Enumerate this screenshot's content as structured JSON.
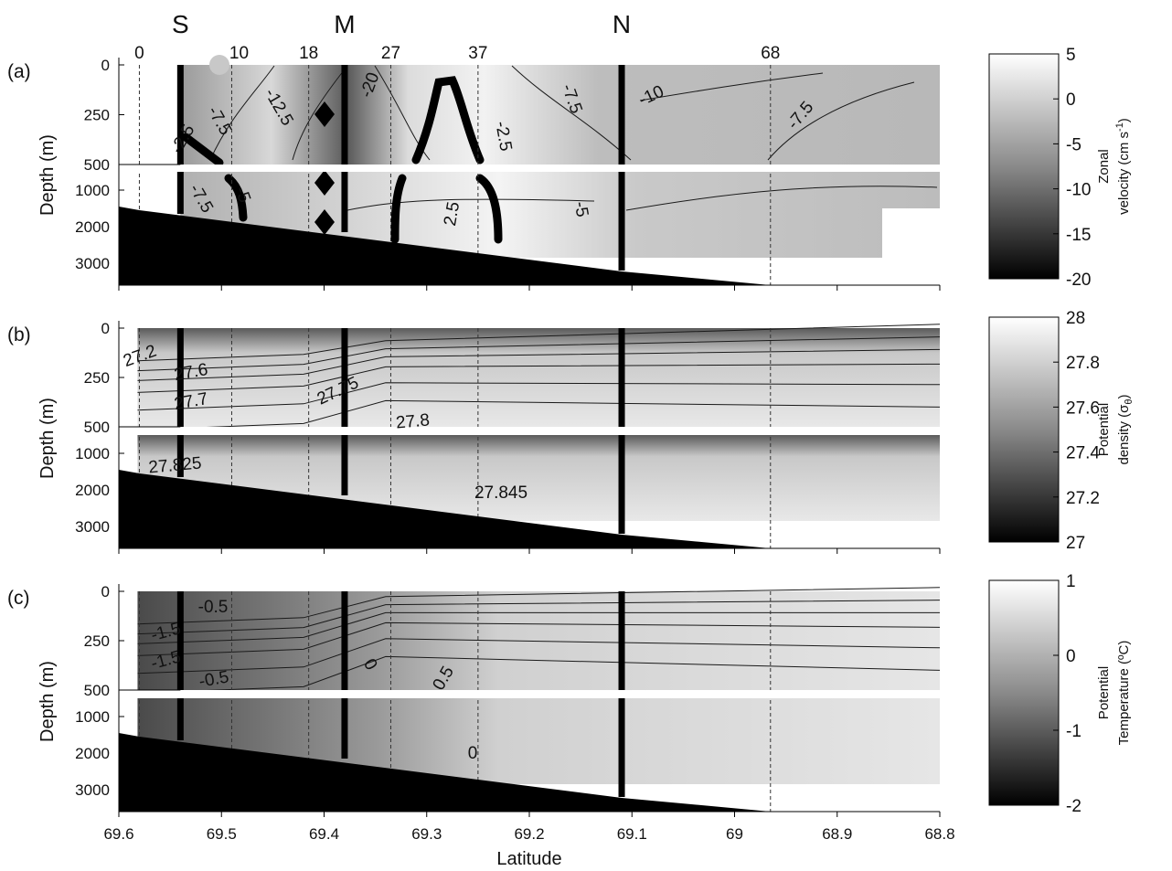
{
  "chart_data": {
    "type": "heatmap",
    "x_axis": {
      "label": "Latitude",
      "range": [
        69.6,
        68.8
      ],
      "ticks": [
        "69.6",
        "69.5",
        "69.4",
        "69.3",
        "69.2",
        "69.1",
        "69",
        "68.9",
        "68.8"
      ]
    },
    "y_axis": {
      "label": "Depth (m)",
      "upper_ticks": [
        "0",
        "250",
        "500"
      ],
      "lower_ticks": [
        "1000",
        "2000",
        "3000"
      ]
    },
    "moorings": [
      {
        "name": "S",
        "lat": 69.54
      },
      {
        "name": "M",
        "lat": 69.38
      },
      {
        "name": "N",
        "lat": 69.11
      }
    ],
    "stations": [
      {
        "label": "0",
        "lat": 69.58
      },
      {
        "label": "10",
        "lat": 69.49
      },
      {
        "label": "18",
        "lat": 69.415
      },
      {
        "label": "27",
        "lat": 69.335
      },
      {
        "label": "37",
        "lat": 69.25
      },
      {
        "label": "68",
        "lat": 68.965
      }
    ],
    "panels": [
      {
        "letter": "(a)",
        "colorbar": {
          "label_line1": "Zonal",
          "label_line2": "velocity (cm s",
          "label_sup": "-1",
          "label_end": ")",
          "ticks": [
            "5",
            "0",
            "-5",
            "-10",
            "-15",
            "-20"
          ],
          "range": [
            -20,
            5
          ]
        },
        "contour_labels": [
          "-2.5",
          "-7.5",
          "-12.5",
          "-20",
          "-7.5",
          "-10",
          "-7.5",
          "-2.5",
          "-7.5",
          "-5",
          "2.5",
          "-5"
        ]
      },
      {
        "letter": "(b)",
        "colorbar": {
          "label_line1": "Potential",
          "label_line2": "density (σ",
          "label_sub": "θ",
          "label_end": ")",
          "ticks": [
            "28",
            "27.8",
            "27.6",
            "27.4",
            "27.2",
            "27"
          ],
          "range": [
            27,
            28
          ]
        },
        "contour_labels": [
          "27.2",
          "27.6",
          "27.7",
          "27.75",
          "27.8",
          "27.825",
          "27.845"
        ]
      },
      {
        "letter": "(c)",
        "colorbar": {
          "label_line1": "Potential",
          "label_line2": "Temperature (ºC)",
          "ticks": [
            "1",
            "0",
            "-1",
            "-2"
          ],
          "range": [
            -2,
            1
          ]
        },
        "contour_labels": [
          "-0.5",
          "-1.5",
          "-1.5",
          "-0.5",
          "0",
          "0.5",
          "0"
        ]
      }
    ]
  }
}
